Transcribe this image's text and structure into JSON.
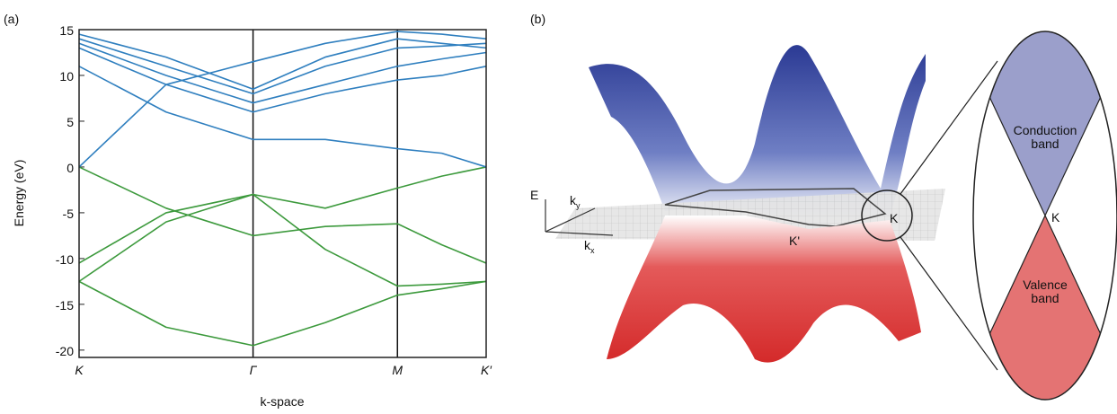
{
  "chart_data": {
    "type": "line",
    "panel_label": "(a)",
    "ylabel": "Energy (eV)",
    "xlabel": "k-space",
    "x": [
      0,
      0.5,
      1,
      1.415,
      1.83,
      2.085,
      2.34
    ],
    "xlim": [
      0,
      2.34
    ],
    "xticks": [
      {
        "value": 0,
        "label": "K"
      },
      {
        "value": 1,
        "label": "Γ"
      },
      {
        "value": 1.83,
        "label": "M"
      },
      {
        "value": 2.34,
        "label": "K′"
      }
    ],
    "vlines": [
      1,
      1.83
    ],
    "ylim": [
      -20.8,
      15
    ],
    "yticks": [
      15,
      10,
      5,
      0,
      -5,
      -10,
      -15,
      -20
    ],
    "series": [
      {
        "color": "#3d9a3d",
        "values": [
          0,
          -4.5,
          -7.5,
          -6.5,
          -6.2,
          -8.5,
          -10.5
        ]
      },
      {
        "color": "#3d9a3d",
        "values": [
          -10.5,
          -5,
          -3,
          -4.5,
          -2.3,
          -1,
          0
        ]
      },
      {
        "color": "#3d9a3d",
        "values": [
          -12.5,
          -6,
          -3,
          -9,
          -13,
          -12.8,
          -12.5
        ]
      },
      {
        "color": "#3d9a3d",
        "values": [
          -12.5,
          -17.5,
          -19.5,
          -17,
          -14,
          -13.3,
          -12.5
        ]
      },
      {
        "color": "#2f7fbf",
        "values": [
          0,
          9,
          11.5,
          13.5,
          14.8,
          14.5,
          14
        ]
      },
      {
        "color": "#2f7fbf",
        "values": [
          11,
          6,
          3,
          3,
          2,
          1.5,
          0
        ]
      },
      {
        "color": "#2f7fbf",
        "values": [
          13,
          9,
          6,
          8,
          9.5,
          10,
          11
        ]
      },
      {
        "color": "#2f7fbf",
        "values": [
          13.5,
          10,
          7,
          9,
          11,
          11.8,
          12.5
        ]
      },
      {
        "color": "#2f7fbf",
        "values": [
          14,
          11,
          8,
          11,
          13,
          13.2,
          13.5
        ]
      },
      {
        "color": "#2f7fbf",
        "values": [
          14.5,
          12,
          8.5,
          12,
          14,
          13.5,
          13
        ]
      }
    ]
  },
  "panel_b": {
    "label": "(b)",
    "axis_e": "E",
    "axis_ky": "k",
    "axis_ky_sub": "y",
    "axis_kx": "k",
    "axis_kx_sub": "x",
    "point_k_prime": "K'",
    "point_k": "K",
    "inset_k": "K",
    "conduction": [
      "Conduction",
      "band"
    ],
    "valence": [
      "Valence",
      "band"
    ]
  }
}
